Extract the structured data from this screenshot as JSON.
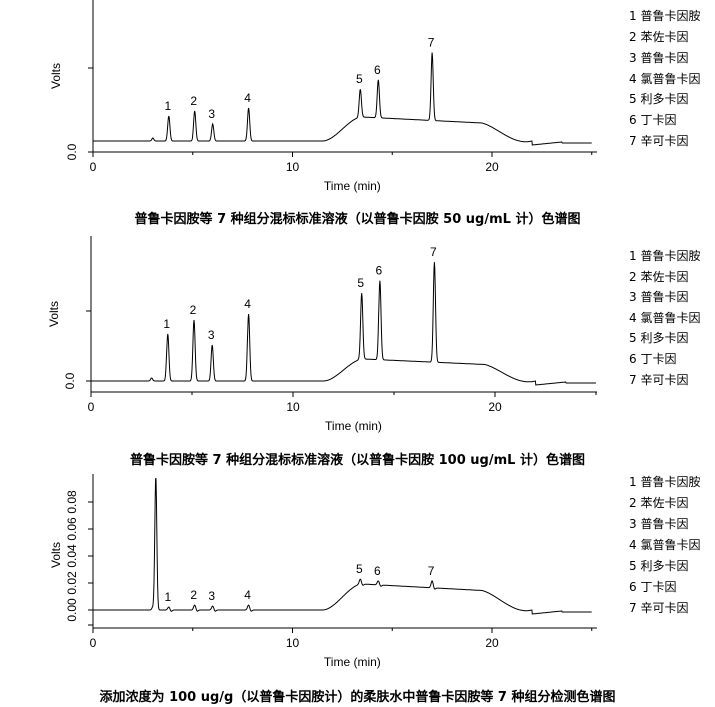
{
  "chart_data": [
    {
      "type": "line",
      "title": "",
      "xlabel": "Time (min)",
      "ylabel": "Volts",
      "xlim": [
        0,
        25
      ],
      "xticks": [
        "0",
        "10",
        "20"
      ],
      "yticks": [
        "0.0"
      ],
      "grid": false,
      "legend": [
        "1 普鲁卡因胺",
        "2 苯佐卡因",
        "3 普鲁卡因",
        "4 氯普鲁卡因",
        "5 利多卡因",
        "6 丁卡因",
        "7 辛可卡因"
      ],
      "peak_labels": [
        "1",
        "2",
        "3",
        "4",
        "5",
        "6",
        "7"
      ],
      "peaks_rt": [
        3.8,
        5.1,
        6.0,
        7.8,
        13.4,
        14.3,
        17.0
      ],
      "caption": "普鲁卡因胺等 7 种组分混标标准溶液（以普鲁卡因胺 50 ug/mL 计）色谱图"
    },
    {
      "type": "line",
      "title": "",
      "xlabel": "Time (min)",
      "ylabel": "Volts",
      "xlim": [
        0,
        25
      ],
      "xticks": [
        "0",
        "10",
        "20"
      ],
      "yticks": [
        "0.0"
      ],
      "grid": false,
      "legend": [
        "1 普鲁卡因胺",
        "2 苯佐卡因",
        "3 普鲁卡因",
        "4 氯普鲁卡因",
        "5 利多卡因",
        "6 丁卡因",
        "7 辛可卡因"
      ],
      "peak_labels": [
        "1",
        "2",
        "3",
        "4",
        "5",
        "6",
        "7"
      ],
      "peaks_rt": [
        3.8,
        5.1,
        6.0,
        7.8,
        13.4,
        14.3,
        17.0
      ],
      "caption": "普鲁卡因胺等 7 种组分混标标准溶液（以普鲁卡因胺 100 ug/mL 计）色谱图"
    },
    {
      "type": "line",
      "title": "",
      "xlabel": "Time (min)",
      "ylabel": "Volts",
      "xlim": [
        0,
        25
      ],
      "ylim": [
        -0.01,
        0.1
      ],
      "xticks": [
        "0",
        "10",
        "20"
      ],
      "yticks": [
        "0.00",
        "0.02",
        "0.04",
        "0.06",
        "0.08"
      ],
      "grid": false,
      "legend": [
        "1 普鲁卡因胺",
        "2 苯佐卡因",
        "3 普鲁卡因",
        "4 氯普鲁卡因",
        "5 利多卡因",
        "6 丁卡因",
        "7 辛可卡因"
      ],
      "peak_labels": [
        "1",
        "2",
        "3",
        "4",
        "5",
        "6",
        "7"
      ],
      "peaks_rt": [
        3.8,
        5.1,
        6.0,
        7.8,
        13.4,
        14.3,
        17.0
      ],
      "caption": "添加浓度为 100 ug/g（以普鲁卡因胺计）的柔肤水中普鲁卡因胺等 7 种组分检测色谱图"
    }
  ]
}
